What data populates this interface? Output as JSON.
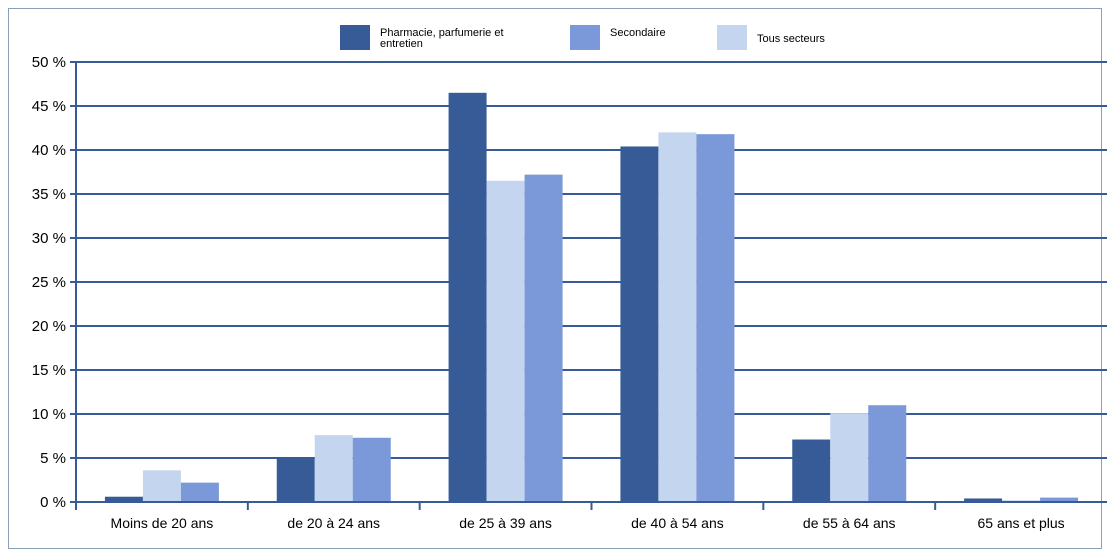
{
  "chart_data": {
    "type": "bar",
    "title": "",
    "xlabel": "",
    "ylabel": "",
    "ylim": [
      0,
      50
    ],
    "y_ticks": [
      "0 %",
      "5 %",
      "10 %",
      "15 %",
      "20 %",
      "25 %",
      "30 %",
      "35 %",
      "40 %",
      "45 %",
      "50 %"
    ],
    "grid": true,
    "legend_position": "top-center",
    "categories": [
      "Moins de 20 ans",
      "de 20 à 24 ans",
      "de 25 à 39 ans",
      "de 40 à 54 ans",
      "de 55 à 64 ans",
      "65 ans et plus"
    ],
    "series": [
      {
        "name": "Pharmacie, parfumerie et entretien",
        "color": "#365b96",
        "values": [
          0.6,
          5.1,
          46.5,
          40.4,
          7.1,
          0.4
        ]
      },
      {
        "name": "Tous secteurs",
        "color": "#c4d5ef",
        "values": [
          3.6,
          7.6,
          36.5,
          42.0,
          10.1,
          0.2
        ]
      },
      {
        "name": "Secondaire",
        "color": "#7b98d8",
        "values": [
          2.2,
          7.3,
          37.2,
          41.8,
          11.0,
          0.5
        ]
      }
    ],
    "legend_order": [
      0,
      2,
      1
    ],
    "colors": {
      "grid": "#365b96",
      "axis": "#365b96"
    }
  }
}
